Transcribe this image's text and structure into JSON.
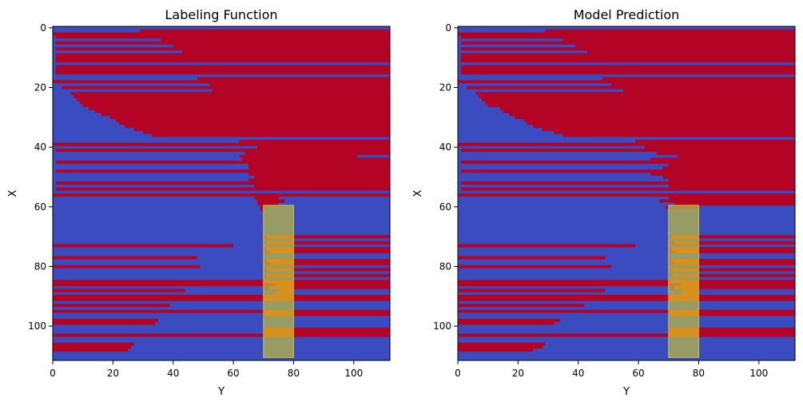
{
  "chart_data": [
    {
      "type": "heatmap",
      "title": "Labeling Function",
      "xlabel": "Y",
      "ylabel": "X",
      "xlim": [
        0,
        112
      ],
      "ylim": [
        112,
        0
      ],
      "xticks": [
        "0",
        "20",
        "40",
        "60",
        "80",
        "100"
      ],
      "yticks": [
        "0",
        "20",
        "40",
        "60",
        "80",
        "100"
      ],
      "colors": {
        "class_0": "#3b4cc0",
        "class_1": "#b40426"
      },
      "highlight": {
        "x0": 70,
        "x1": 80,
        "y0": 60,
        "y1": 111,
        "color": "#bfbf3f",
        "opacity": 0.7
      },
      "red_segments": [
        [
          1,
          29,
          112
        ],
        [
          2,
          0,
          112
        ],
        [
          3,
          1,
          112
        ],
        [
          4,
          36,
          112
        ],
        [
          5,
          1,
          112
        ],
        [
          6,
          40,
          112
        ],
        [
          7,
          1,
          112
        ],
        [
          8,
          43,
          112
        ],
        [
          9,
          1,
          112
        ],
        [
          10,
          1,
          112
        ],
        [
          11,
          1,
          112
        ],
        [
          13,
          1,
          112
        ],
        [
          14,
          1,
          112
        ],
        [
          15,
          1,
          112
        ],
        [
          17,
          48,
          112
        ],
        [
          18,
          0,
          112
        ],
        [
          19,
          52,
          112
        ],
        [
          20,
          3,
          112
        ],
        [
          21,
          53,
          112
        ],
        [
          22,
          6,
          112
        ],
        [
          23,
          7,
          112
        ],
        [
          24,
          8,
          112
        ],
        [
          25,
          9,
          112
        ],
        [
          26,
          10,
          112
        ],
        [
          27,
          12,
          112
        ],
        [
          28,
          14,
          112
        ],
        [
          29,
          16,
          112
        ],
        [
          30,
          19,
          112
        ],
        [
          31,
          21,
          112
        ],
        [
          32,
          22,
          112
        ],
        [
          33,
          24,
          112
        ],
        [
          34,
          27,
          112
        ],
        [
          35,
          30,
          112
        ],
        [
          36,
          33,
          112
        ],
        [
          38,
          62,
          112
        ],
        [
          39,
          0,
          112
        ],
        [
          40,
          68,
          112
        ],
        [
          41,
          1,
          112
        ],
        [
          42,
          64,
          112
        ],
        [
          43,
          62,
          101
        ],
        [
          44,
          63,
          112
        ],
        [
          45,
          1,
          112
        ],
        [
          46,
          65,
          112
        ],
        [
          47,
          65,
          112
        ],
        [
          48,
          1,
          112
        ],
        [
          49,
          65,
          112
        ],
        [
          50,
          67,
          112
        ],
        [
          51,
          65,
          112
        ],
        [
          52,
          1,
          112
        ],
        [
          53,
          67,
          112
        ],
        [
          54,
          1,
          112
        ],
        [
          56,
          0,
          112
        ],
        [
          57,
          67,
          75
        ],
        [
          58,
          68,
          77
        ],
        [
          59,
          68,
          75
        ],
        [
          60,
          69,
          71
        ],
        [
          61,
          69,
          70
        ],
        [
          70,
          70,
          112
        ],
        [
          72,
          70,
          112
        ],
        [
          73,
          0,
          60
        ],
        [
          74,
          70,
          112
        ],
        [
          75,
          70,
          112
        ],
        [
          77,
          0,
          48
        ],
        [
          78,
          70,
          112
        ],
        [
          79,
          70,
          112
        ],
        [
          80,
          0,
          49
        ],
        [
          81,
          70,
          112
        ],
        [
          83,
          70,
          112
        ],
        [
          85,
          0,
          112
        ],
        [
          86,
          0,
          112
        ],
        [
          87,
          70,
          112
        ],
        [
          88,
          0,
          44
        ],
        [
          90,
          0,
          112
        ],
        [
          91,
          0,
          112
        ],
        [
          93,
          0,
          39
        ],
        [
          95,
          0,
          112
        ],
        [
          96,
          70,
          112
        ],
        [
          98,
          0,
          35
        ],
        [
          99,
          0,
          34
        ],
        [
          101,
          70,
          112
        ],
        [
          102,
          70,
          112
        ],
        [
          103,
          0,
          112
        ],
        [
          106,
          0,
          27
        ],
        [
          107,
          0,
          26
        ],
        [
          108,
          0,
          25
        ]
      ],
      "orange_segments": [
        [
          70,
          71,
          80
        ],
        [
          72,
          71,
          80
        ],
        [
          74,
          71,
          80
        ],
        [
          75,
          72,
          80
        ],
        [
          78,
          71,
          80
        ],
        [
          79,
          72,
          80
        ],
        [
          81,
          71,
          80
        ],
        [
          83,
          71,
          80
        ],
        [
          85,
          70,
          80
        ],
        [
          86,
          74,
          80
        ],
        [
          87,
          72,
          80
        ],
        [
          88,
          75,
          80
        ],
        [
          89,
          74,
          80
        ],
        [
          90,
          70,
          80
        ],
        [
          91,
          70,
          80
        ],
        [
          95,
          70,
          80
        ],
        [
          96,
          70,
          80
        ],
        [
          101,
          70,
          80
        ],
        [
          102,
          70,
          80
        ],
        [
          103,
          70,
          80
        ]
      ]
    },
    {
      "type": "heatmap",
      "title": "Model Prediction",
      "xlabel": "Y",
      "ylabel": "X",
      "xlim": [
        0,
        112
      ],
      "ylim": [
        112,
        0
      ],
      "xticks": [
        "0",
        "20",
        "40",
        "60",
        "80",
        "100"
      ],
      "yticks": [
        "0",
        "20",
        "40",
        "60",
        "80",
        "100"
      ],
      "colors": {
        "class_0": "#3b4cc0",
        "class_1": "#b40426"
      },
      "highlight": {
        "x0": 70,
        "x1": 80,
        "y0": 60,
        "y1": 111,
        "color": "#bfbf3f",
        "opacity": 0.7
      },
      "red_segments": [
        [
          1,
          29,
          112
        ],
        [
          2,
          0,
          112
        ],
        [
          3,
          1,
          112
        ],
        [
          4,
          35,
          112
        ],
        [
          5,
          1,
          112
        ],
        [
          6,
          39,
          112
        ],
        [
          7,
          1,
          112
        ],
        [
          8,
          43,
          112
        ],
        [
          9,
          1,
          112
        ],
        [
          10,
          1,
          112
        ],
        [
          11,
          1,
          112
        ],
        [
          13,
          1,
          112
        ],
        [
          14,
          1,
          112
        ],
        [
          15,
          1,
          112
        ],
        [
          17,
          48,
          112
        ],
        [
          18,
          0,
          112
        ],
        [
          19,
          51,
          112
        ],
        [
          20,
          3,
          112
        ],
        [
          21,
          55,
          112
        ],
        [
          22,
          6,
          112
        ],
        [
          23,
          7,
          112
        ],
        [
          24,
          8,
          112
        ],
        [
          25,
          9,
          112
        ],
        [
          26,
          10,
          112
        ],
        [
          27,
          14,
          112
        ],
        [
          28,
          15,
          112
        ],
        [
          29,
          17,
          112
        ],
        [
          30,
          19,
          112
        ],
        [
          31,
          22,
          112
        ],
        [
          32,
          23,
          112
        ],
        [
          33,
          25,
          112
        ],
        [
          34,
          28,
          112
        ],
        [
          35,
          32,
          112
        ],
        [
          36,
          35,
          112
        ],
        [
          38,
          59,
          112
        ],
        [
          39,
          0,
          112
        ],
        [
          40,
          62,
          112
        ],
        [
          41,
          1,
          112
        ],
        [
          42,
          66,
          112
        ],
        [
          43,
          73,
          112
        ],
        [
          44,
          64,
          112
        ],
        [
          45,
          1,
          112
        ],
        [
          46,
          70,
          112
        ],
        [
          47,
          68,
          112
        ],
        [
          48,
          1,
          112
        ],
        [
          49,
          64,
          112
        ],
        [
          50,
          68,
          112
        ],
        [
          51,
          70,
          112
        ],
        [
          52,
          1,
          112
        ],
        [
          53,
          70,
          112
        ],
        [
          54,
          1,
          112
        ],
        [
          56,
          0,
          112
        ],
        [
          57,
          70,
          112
        ],
        [
          58,
          67,
          112
        ],
        [
          59,
          72,
          112
        ],
        [
          60,
          69,
          80
        ],
        [
          70,
          70,
          112
        ],
        [
          72,
          70,
          112
        ],
        [
          73,
          0,
          59
        ],
        [
          74,
          70,
          112
        ],
        [
          75,
          70,
          112
        ],
        [
          77,
          0,
          49
        ],
        [
          78,
          70,
          112
        ],
        [
          79,
          70,
          112
        ],
        [
          80,
          0,
          51
        ],
        [
          81,
          70,
          112
        ],
        [
          83,
          70,
          112
        ],
        [
          85,
          0,
          112
        ],
        [
          86,
          0,
          112
        ],
        [
          87,
          70,
          112
        ],
        [
          88,
          0,
          49
        ],
        [
          90,
          0,
          112
        ],
        [
          91,
          0,
          112
        ],
        [
          93,
          0,
          42
        ],
        [
          95,
          0,
          112
        ],
        [
          96,
          70,
          112
        ],
        [
          98,
          0,
          34
        ],
        [
          99,
          0,
          32
        ],
        [
          101,
          70,
          112
        ],
        [
          102,
          70,
          112
        ],
        [
          103,
          0,
          112
        ],
        [
          106,
          0,
          29
        ],
        [
          107,
          0,
          28
        ],
        [
          108,
          0,
          25
        ]
      ],
      "orange_segments": [
        [
          70,
          71,
          80
        ],
        [
          72,
          72,
          80
        ],
        [
          74,
          71,
          80
        ],
        [
          75,
          72,
          80
        ],
        [
          78,
          71,
          80
        ],
        [
          79,
          72,
          80
        ],
        [
          81,
          71,
          80
        ],
        [
          83,
          71,
          80
        ],
        [
          85,
          70,
          80
        ],
        [
          86,
          74,
          80
        ],
        [
          87,
          72,
          80
        ],
        [
          88,
          75,
          80
        ],
        [
          89,
          74,
          80
        ],
        [
          90,
          70,
          80
        ],
        [
          91,
          70,
          80
        ],
        [
          95,
          70,
          80
        ],
        [
          96,
          70,
          80
        ],
        [
          101,
          70,
          80
        ],
        [
          102,
          70,
          80
        ],
        [
          103,
          70,
          80
        ]
      ]
    }
  ]
}
